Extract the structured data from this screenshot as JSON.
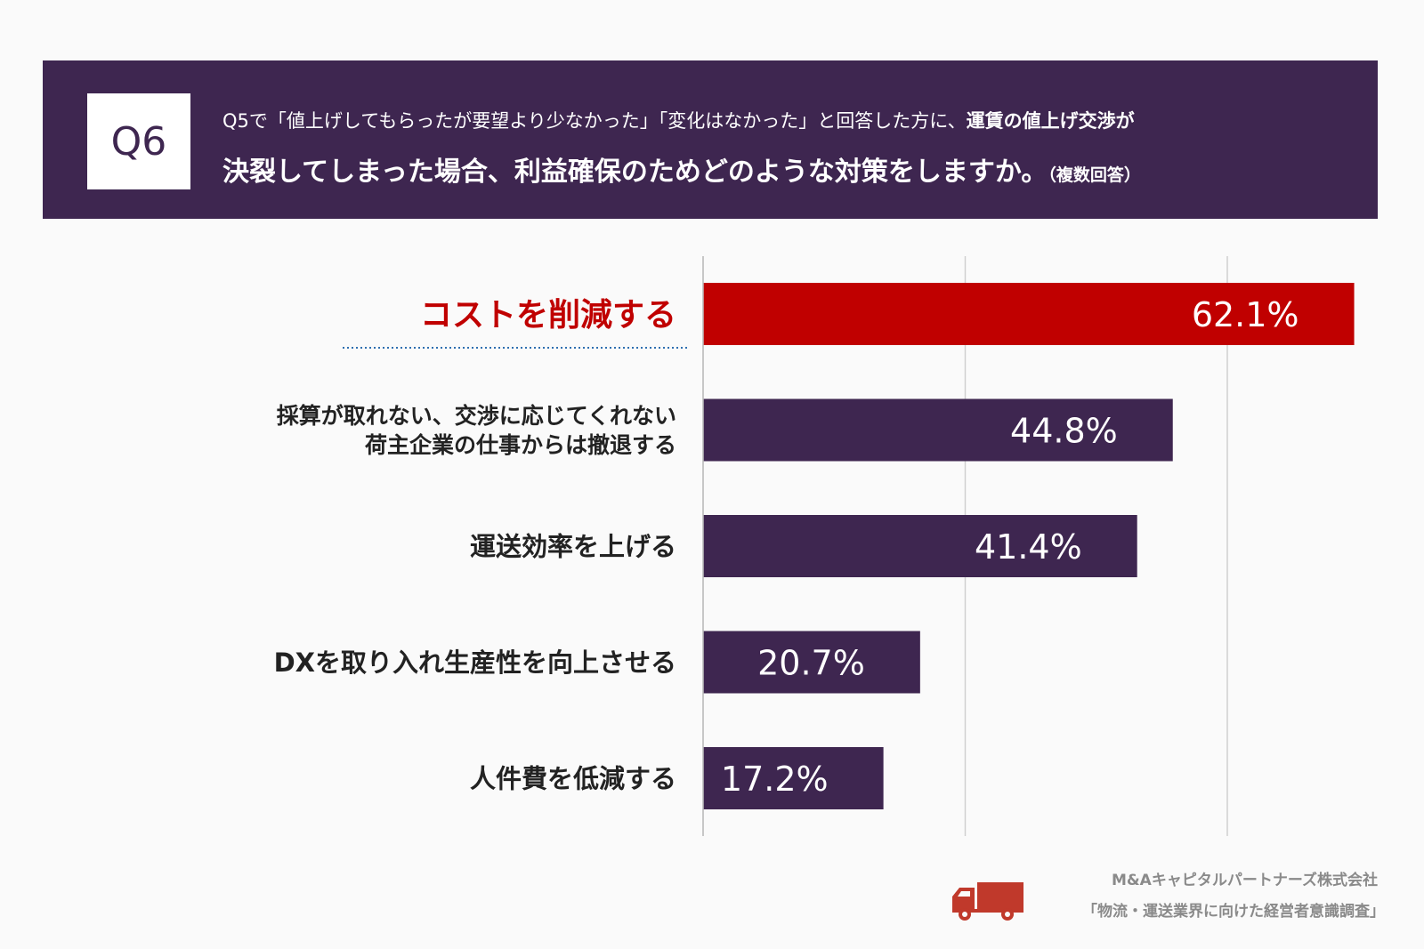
{
  "header": {
    "question_number": "Q6",
    "line1_plain": "Q5で「値上げしてもらったが要望より少なかった」「変化はなかった」と回答した方に、",
    "line1_bold": "運賃の値上げ交渉が",
    "line2_main": "決裂してしまった場合、利益確保のためどのような対策をしますか。",
    "line2_note": "（複数回答）"
  },
  "colors": {
    "header_bg": "#3e2650",
    "bar": "#3e2650",
    "highlight_bar": "#c00000",
    "highlight_text": "#c00000",
    "underline": "#2f6fb0"
  },
  "chart_data": {
    "type": "bar",
    "orientation": "horizontal",
    "categories": [
      [
        "コストを削減する"
      ],
      [
        "採算が取れない、交渉に応じてくれない",
        "荷主企業の仕事からは撤退する"
      ],
      [
        "運送効率を上げる"
      ],
      [
        "DXを取り入れ生産性を向上させる"
      ],
      [
        "人件費を低減する"
      ]
    ],
    "values": [
      62.1,
      44.8,
      41.4,
      20.7,
      17.2
    ],
    "value_labels": [
      "62.1%",
      "44.8%",
      "41.4%",
      "20.7%",
      "17.2%"
    ],
    "highlight_index": 0,
    "xlim": [
      0,
      75
    ],
    "grid": true,
    "unit": "%"
  },
  "footer": {
    "company": "M&Aキャピタルパートナーズ株式会社",
    "survey": "「物流・運送業界に向けた経営者意識調査」",
    "logo_icon": "truck-icon"
  }
}
